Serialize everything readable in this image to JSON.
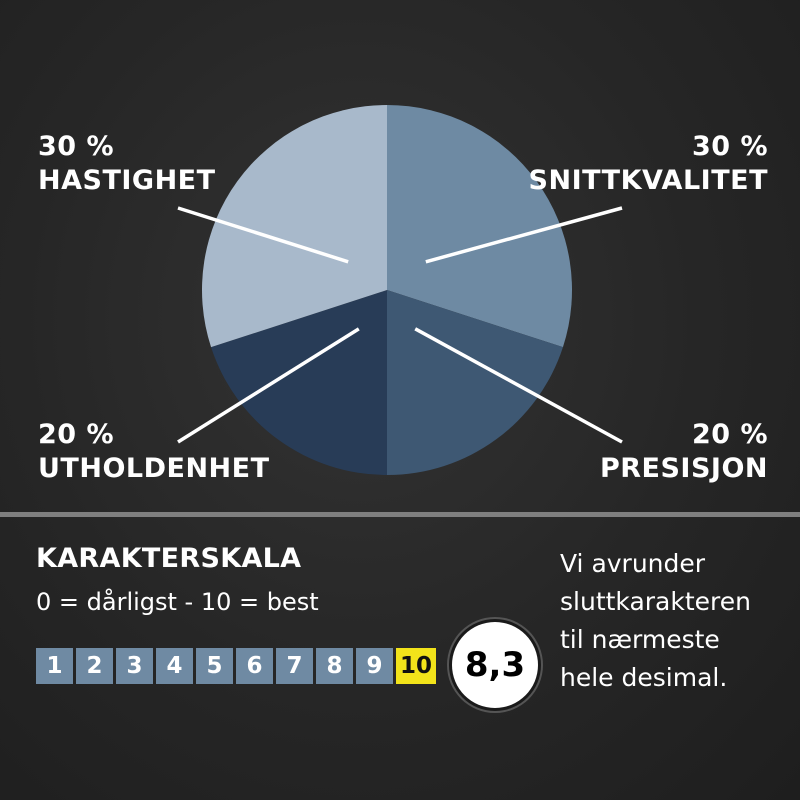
{
  "chart_data": {
    "type": "pie",
    "slices": [
      {
        "percent_label": "30 %",
        "name": "HASTIGHET",
        "value": 30,
        "color": "#a8b9cb"
      },
      {
        "percent_label": "30 %",
        "name": "SNITTKVALITET",
        "value": 30,
        "color": "#6e8aa3"
      },
      {
        "percent_label": "20 %",
        "name": "PRESISJON",
        "value": 20,
        "color": "#3e5873"
      },
      {
        "percent_label": "20 %",
        "name": "UTHOLDENHET",
        "value": 20,
        "color": "#283c57"
      }
    ]
  },
  "scale": {
    "title": "KARAKTERSKALA",
    "description": "0 = dårligst - 10 = best",
    "values": [
      "1",
      "2",
      "3",
      "4",
      "5",
      "6",
      "7",
      "8",
      "9",
      "10"
    ],
    "highlighted": "10",
    "highlight_color": "#f2e31a"
  },
  "score": "8,3",
  "note": [
    "Vi avrunder",
    "sluttkarakteren",
    "til nærmeste",
    "hele desimal."
  ]
}
